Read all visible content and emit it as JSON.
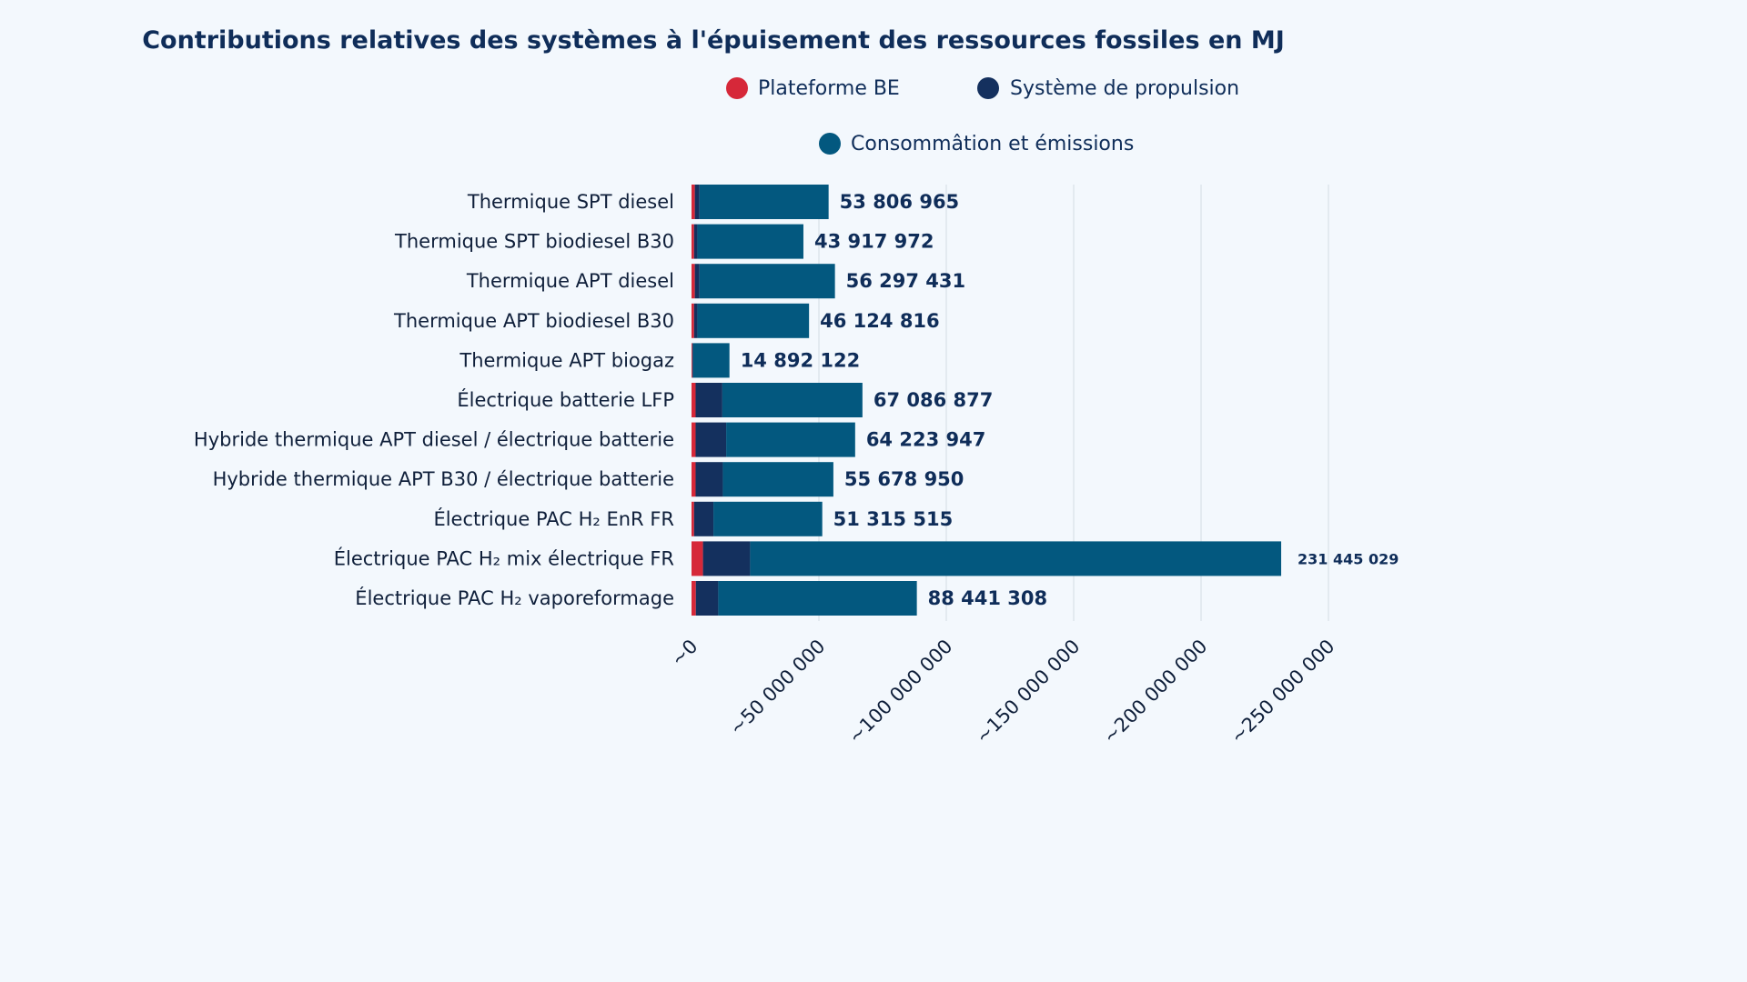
{
  "chart_data": {
    "type": "bar",
    "orientation": "horizontal",
    "stacked": true,
    "title": "Contributions relatives des systèmes à l'épuisement des ressources fossiles en MJ",
    "xlabel": "",
    "ylabel": "",
    "xlim": [
      0,
      250000000
    ],
    "grid": true,
    "legend_position": "top-right",
    "categories": [
      "Thermique SPT diesel",
      "Thermique SPT biodiesel B30",
      "Thermique APT diesel",
      "Thermique APT biodiesel B30",
      "Thermique APT biogaz",
      "Électrique batterie LFP",
      "Hybride thermique APT diesel / électrique batterie",
      "Hybride thermique APT B30 / électrique batterie",
      "Électrique PAC H₂ EnR FR",
      "Électrique PAC H₂ mix électrique FR",
      "Électrique PAC H₂ vaporeformage"
    ],
    "series": [
      {
        "name": "Plateforme BE",
        "color": "#d62839",
        "values": [
          1300000,
          1000000,
          1300000,
          1000000,
          300000,
          1600000,
          1600000,
          1600000,
          1000000,
          4500000,
          1700000
        ]
      },
      {
        "name": "Système de propulsion",
        "color": "#14305e",
        "values": [
          1800000,
          1300000,
          1800000,
          1300000,
          300000,
          10500000,
          12000000,
          10700000,
          7600000,
          18500000,
          8800000
        ]
      },
      {
        "name": "Consommâtion et émissions",
        "color": "#03587f",
        "values": [
          50706965,
          41617972,
          53197431,
          43824816,
          14292122,
          54986877,
          50623947,
          43378950,
          42715515,
          208445029,
          77941308
        ]
      }
    ],
    "totals": [
      53806965,
      43917972,
      56297431,
      46124816,
      14892122,
      67086877,
      64223947,
      55678950,
      51315515,
      231445029,
      88441308
    ],
    "data_labels": [
      "53 806 965",
      "43 917 972",
      "56 297 431",
      "46 124 816",
      "14 892 122",
      "67 086 877",
      "64 223 947",
      "55 678 950",
      "51 315 515",
      "231 445 029",
      "88 441 308"
    ],
    "x_ticks": [
      0,
      50000000,
      100000000,
      150000000,
      200000000,
      250000000
    ],
    "x_tick_labels": [
      "~0",
      "~50 000 000",
      "~100 000 000",
      "~150 000 000",
      "~200 000 000",
      "~250 000 000"
    ]
  }
}
